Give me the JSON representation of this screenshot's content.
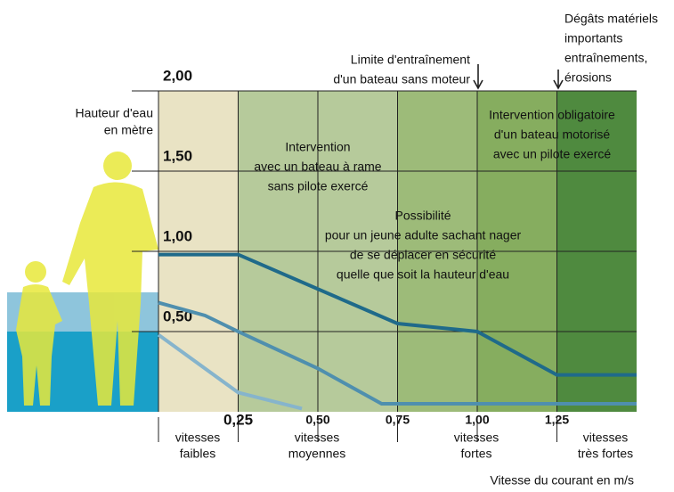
{
  "chart_data": {
    "type": "line",
    "xlim": [
      0,
      1.5
    ],
    "ylim": [
      0,
      2
    ],
    "xticks": [
      {
        "value": 0.25,
        "label": "0,25"
      },
      {
        "value": 0.5,
        "label": "0,50"
      },
      {
        "value": 0.75,
        "label": "0,75"
      },
      {
        "value": 1,
        "label": "1,00"
      },
      {
        "value": 1.25,
        "label": "1,25"
      }
    ],
    "yticks": [
      {
        "value": 0.5,
        "label": "0,50"
      },
      {
        "value": 1,
        "label": "1,00"
      },
      {
        "value": 1.5,
        "label": "1,50"
      },
      {
        "value": 2,
        "label": "2,00"
      }
    ],
    "y_label": [
      "Hauteur d'eau",
      "en mètre"
    ],
    "x_label": "Vitesse du courant en m/s",
    "zones": [
      {
        "x": [
          0,
          0.25
        ],
        "color": "#e9e3c4"
      },
      {
        "x": [
          0.25,
          0.75
        ],
        "color": "#b6ca9b"
      },
      {
        "x": [
          0.75,
          1
        ],
        "color": "#9dbb79"
      },
      {
        "x": [
          1,
          1.25
        ],
        "color": "#86ad5f"
      },
      {
        "x": [
          1.25,
          1.5
        ],
        "color": "#4f8a3f"
      }
    ],
    "series": [
      {
        "color": "#1f6a8a",
        "x": [
          0,
          0.25,
          0.75,
          1,
          1.25,
          1.5
        ],
        "values": [
          0.98,
          0.98,
          0.55,
          0.5,
          0.23,
          0.23
        ]
      },
      {
        "color": "#4f8fae",
        "x": [
          0,
          0.146,
          0.25,
          0.5,
          0.7,
          1.5
        ],
        "values": [
          0.68,
          0.6,
          0.5,
          0.27,
          0.05,
          0.05
        ]
      },
      {
        "color": "#86b4cc",
        "x": [
          0,
          0.25,
          0.45
        ],
        "values": [
          0.48,
          0.12,
          0.02
        ]
      }
    ],
    "annotations": [
      [
        "Dégâts matériels",
        "importants",
        "entraînements,",
        "érosions"
      ],
      [
        "Limite d'entraînement",
        "d'un bateau sans moteur"
      ],
      [
        "Intervention",
        "avec un bateau à rame",
        "sans pilote exercé"
      ],
      [
        "Intervention obligatoire",
        "d'un bateau motorisé",
        "avec un pilote exercé"
      ],
      [
        "Possibilité",
        "pour un jeune adulte sachant nager",
        "de se déplacer en sécurité",
        "quelle que soit la hauteur d'eau"
      ]
    ],
    "speed_classes": [
      [
        "vitesses",
        "faibles"
      ],
      [
        "vitesses",
        "moyennes"
      ],
      [
        "vitesses",
        "fortes"
      ],
      [
        "vitesses",
        "très fortes"
      ]
    ]
  }
}
